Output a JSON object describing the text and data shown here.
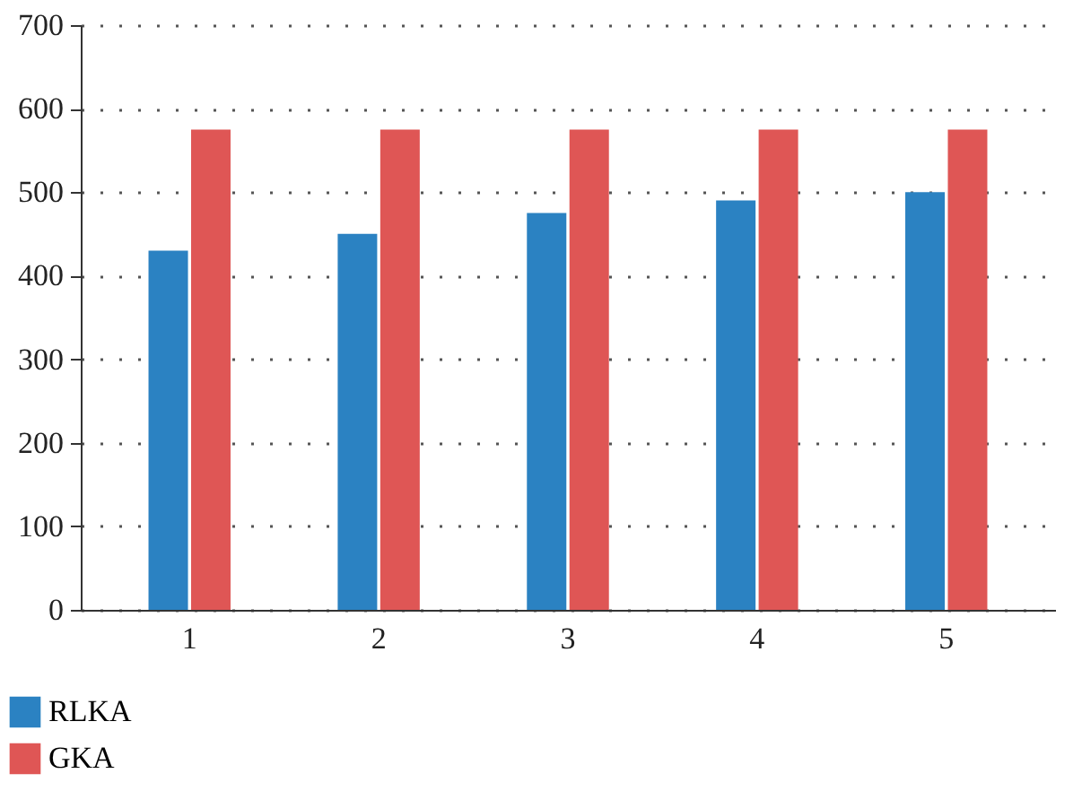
{
  "chart_data": {
    "type": "bar",
    "categories": [
      "1",
      "2",
      "3",
      "4",
      "5"
    ],
    "series": [
      {
        "name": "RLKA",
        "color": "#2b82c2",
        "values": [
          430,
          450,
          475,
          490,
          500
        ]
      },
      {
        "name": "GKA",
        "color": "#df5655",
        "values": [
          575,
          575,
          575,
          575,
          575
        ]
      }
    ],
    "ylim": [
      0,
      700
    ],
    "yticks": [
      0,
      100,
      200,
      300,
      400,
      500,
      600,
      700
    ],
    "grid": true,
    "legend": "bottom left"
  }
}
